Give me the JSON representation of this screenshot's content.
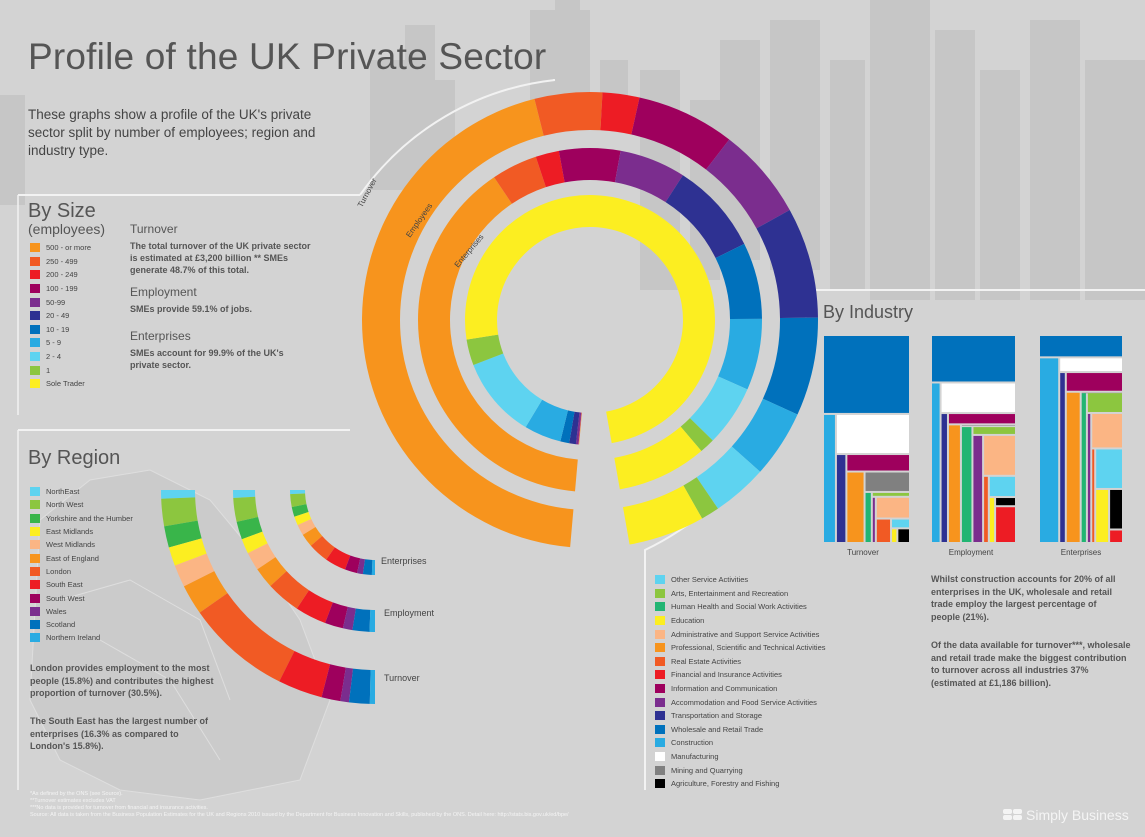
{
  "header": {
    "title": "Profile of the UK Private Sector",
    "intro": "These graphs show a profile of the UK's private sector split by number of employees; region and industry type."
  },
  "by_size": {
    "title": "By Size",
    "subtitle": "(employees)",
    "legend": [
      {
        "label": "500 - or more",
        "color": "#f7941d"
      },
      {
        "label": "250 - 499",
        "color": "#f15a24"
      },
      {
        "label": "200 - 249",
        "color": "#ed1c24"
      },
      {
        "label": "100 - 199",
        "color": "#9e005d"
      },
      {
        "label": "50-99",
        "color": "#7b2d8e"
      },
      {
        "label": "20 - 49",
        "color": "#2e3192"
      },
      {
        "label": "10 - 19",
        "color": "#0071bc"
      },
      {
        "label": "5 - 9",
        "color": "#29abe2"
      },
      {
        "label": "2 - 4",
        "color": "#5ed3f0"
      },
      {
        "label": "1",
        "color": "#8cc63f"
      },
      {
        "label": "Sole Trader",
        "color": "#fcee21"
      }
    ],
    "stats": [
      {
        "heading": "Turnover",
        "text": "The total turnover of the UK private sector is estimated at £3,200 billion ** SMEs generate 48.7% of this total."
      },
      {
        "heading": "Employment",
        "text": "SMEs provide 59.1% of jobs."
      },
      {
        "heading": "Enterprises",
        "text": "SMEs account for 99.9% of the UK's private sector."
      }
    ],
    "ring_labels": [
      "Turnover",
      "Employees",
      "Enterprises"
    ]
  },
  "by_region": {
    "title": "By Region",
    "legend": [
      {
        "label": "NorthEast",
        "color": "#5ed3f0"
      },
      {
        "label": "North West",
        "color": "#8cc63f"
      },
      {
        "label": "Yorkshire and the Humber",
        "color": "#39b54a"
      },
      {
        "label": "East Midlands",
        "color": "#fcee21"
      },
      {
        "label": "West Midlands",
        "color": "#fbb584"
      },
      {
        "label": "East of England",
        "color": "#f7941d"
      },
      {
        "label": "London",
        "color": "#f15a24"
      },
      {
        "label": "South East",
        "color": "#ed1c24"
      },
      {
        "label": "South West",
        "color": "#9e005d"
      },
      {
        "label": "Wales",
        "color": "#7b2d8e"
      },
      {
        "label": "Scotland",
        "color": "#0071bc"
      },
      {
        "label": "Northern Ireland",
        "color": "#29abe2"
      }
    ],
    "arc_labels": [
      "Enterprises",
      "Employment",
      "Turnover"
    ],
    "note1": "London provides employment to the most people (15.8%) and contributes the highest proportion of turnover (30.5%).",
    "note2": "The South East has the largest number of enterprises (16.3% as compared to London's 15.8%)."
  },
  "by_industry": {
    "title": "By Industry",
    "treemap_labels": [
      "Turnover",
      "Employment",
      "Enterprises"
    ],
    "legend": [
      {
        "label": "Other Service Activities",
        "color": "#5ed3f0"
      },
      {
        "label": "Arts, Entertainment and Recreation",
        "color": "#8cc63f"
      },
      {
        "label": "Human Health and Social Work Activities",
        "color": "#22b573"
      },
      {
        "label": "Education",
        "color": "#fcee21"
      },
      {
        "label": "Administrative and Support Service Activities",
        "color": "#fbb584"
      },
      {
        "label": "Professional, Scientific and Technical Activities",
        "color": "#f7941d"
      },
      {
        "label": "Real Estate Activities",
        "color": "#f15a24"
      },
      {
        "label": "Financial and Insurance Activities",
        "color": "#ed1c24"
      },
      {
        "label": "Information and Communication",
        "color": "#9e005d"
      },
      {
        "label": "Accommodation and Food Service Activities",
        "color": "#7b2d8e"
      },
      {
        "label": "Transportation and Storage",
        "color": "#2e3192"
      },
      {
        "label": "Wholesale and Retail Trade",
        "color": "#0071bc"
      },
      {
        "label": "Construction",
        "color": "#29abe2"
      },
      {
        "label": "Manufacturing",
        "color": "#ffffff"
      },
      {
        "label": "Mining and Quarrying",
        "color": "#808080"
      },
      {
        "label": "Agriculture, Forestry and Fishing",
        "color": "#000000"
      }
    ],
    "note1": "Whilst construction accounts for 20% of all enterprises in the UK, wholesale and retail trade employ the largest percentage of people (21%).",
    "note2": "Of the data available for turnover***, wholesale and retail trade make the biggest contribution to turnover across all industries 37% (estimated at £1,186 billion)."
  },
  "footer": {
    "lines": [
      "*As defined by the ONS (see Source).",
      "**Turnover estimates excludes VAT",
      "***No data is provided for turnover from financial and insurance activities.",
      "Source: All data is taken from the Business Population Estimates for the UK and Regions 2010 issued by the Department for Business Innovation and Skills, published by the ONS. Detail here: http://stats.bis.gov.uk/ed/bpe/"
    ],
    "brand": "Simply Business"
  },
  "chart_data": [
    {
      "type": "pie",
      "title": "By Size",
      "categories": [
        "500 - or more",
        "250 - 499",
        "200 - 249",
        "100 - 199",
        "50-99",
        "20 - 49",
        "10 - 19",
        "5 - 9",
        "2 - 4",
        "1",
        "Sole Trader"
      ],
      "series": [
        {
          "name": "Turnover",
          "values": [
            51.3,
            5.5,
            3.0,
            8.0,
            7.5,
            9.0,
            8.0,
            5.5,
            4.5,
            1.5,
            6.2
          ]
        },
        {
          "name": "Employees",
          "values": [
            40.9,
            4.5,
            2.3,
            6.0,
            6.5,
            9.0,
            7.5,
            7.0,
            6.0,
            1.5,
            8.8
          ]
        },
        {
          "name": "Enterprises",
          "values": [
            0.05,
            0.02,
            0.01,
            0.05,
            0.3,
            0.9,
            1.2,
            5.0,
            11.0,
            3.5,
            78.0
          ]
        }
      ]
    },
    {
      "type": "bar",
      "title": "By Region",
      "categories": [
        "NorthEast",
        "North West",
        "Yorkshire and the Humber",
        "East Midlands",
        "West Midlands",
        "East of England",
        "London",
        "South East",
        "South West",
        "Wales",
        "Scotland",
        "Northern Ireland"
      ],
      "series": [
        {
          "name": "Enterprises",
          "values": [
            3.2,
            10.0,
            7.6,
            6.9,
            8.4,
            10.4,
            15.8,
            16.3,
            9.6,
            4.5,
            6.9,
            2.4
          ]
        },
        {
          "name": "Employment",
          "values": [
            3.6,
            11.0,
            8.2,
            6.9,
            8.5,
            9.6,
            15.8,
            14.4,
            8.4,
            4.4,
            7.8,
            2.5
          ]
        },
        {
          "name": "Turnover",
          "values": [
            2.5,
            8.0,
            6.2,
            5.5,
            6.5,
            8.8,
            30.5,
            13.0,
            5.5,
            2.5,
            6.0,
            1.5
          ]
        }
      ]
    },
    {
      "type": "heatmap",
      "title": "By Industry",
      "categories": [
        "Wholesale and Retail Trade",
        "Construction",
        "Manufacturing",
        "Transportation and Storage",
        "Information and Communication",
        "Professional, Scientific and Technical Activities",
        "Mining and Quarrying",
        "Human Health and Social Work Activities",
        "Arts, Entertainment and Recreation",
        "Accommodation and Food Service Activities",
        "Administrative and Support Service Activities",
        "Real Estate Activities",
        "Other Service Activities",
        "Education",
        "Agriculture, Forestry and Fishing",
        "Financial and Insurance Activities"
      ],
      "series": [
        {
          "name": "Turnover",
          "values": [
            37,
            9,
            16,
            5,
            6,
            7,
            5,
            2,
            1,
            1,
            4,
            2,
            1,
            0.5,
            1,
            0
          ]
        },
        {
          "name": "Employment",
          "values": [
            21,
            8,
            12,
            5,
            4,
            8,
            0.5,
            7,
            2,
            6,
            7,
            2,
            3,
            1.5,
            1,
            4
          ]
        },
        {
          "name": "Enterprises",
          "values": [
            10,
            20,
            5,
            6,
            6,
            12,
            0.1,
            5,
            4,
            3,
            6,
            2,
            6,
            4,
            3,
            1
          ]
        }
      ]
    }
  ]
}
